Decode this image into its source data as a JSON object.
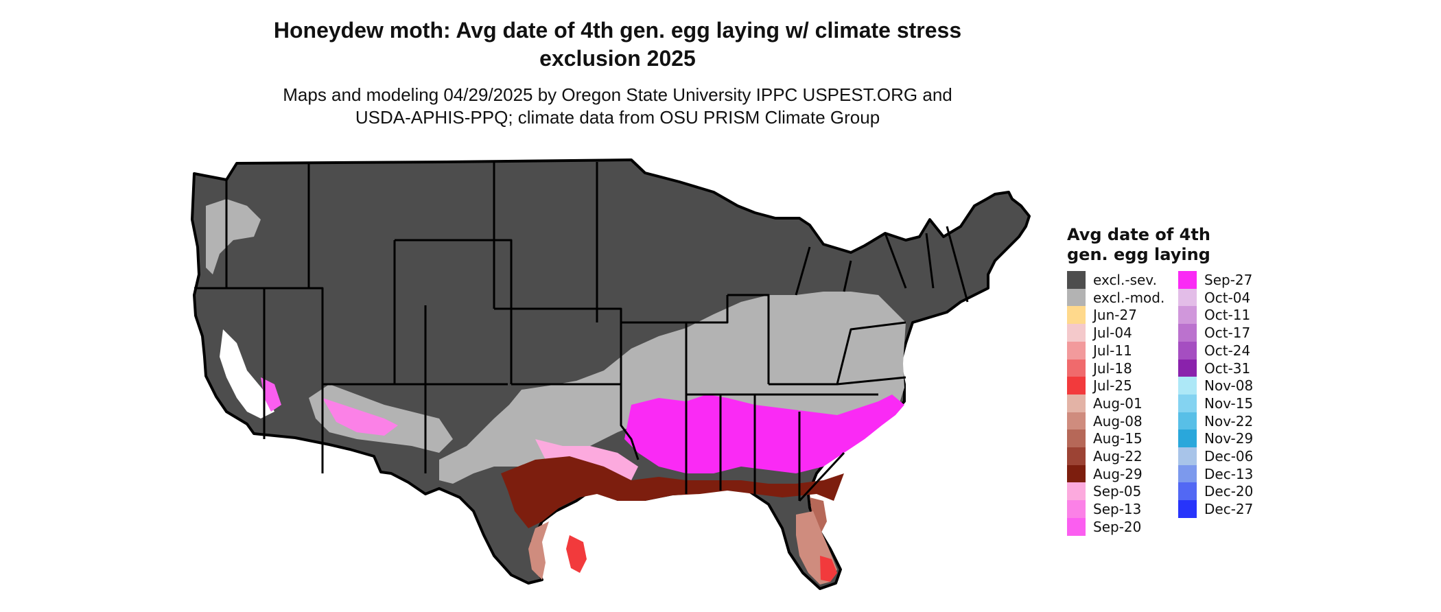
{
  "title_line1": "Honeydew moth: Avg date of 4th gen. egg laying w/ climate stress",
  "title_line2": "exclusion 2025",
  "subtitle_line1": "Maps and modeling 04/29/2025 by Oregon State University IPPC USPEST.ORG and",
  "subtitle_line2": "USDA-APHIS-PPQ; climate data from OSU PRISM Climate Group",
  "legend": {
    "title_line1": "Avg date of 4th",
    "title_line2": "gen. egg laying",
    "items": [
      {
        "label": "excl.-sev.",
        "color": "#4d4d4d"
      },
      {
        "label": "excl.-mod.",
        "color": "#b3b3b3"
      },
      {
        "label": "Jun-27",
        "color": "#ffd98c"
      },
      {
        "label": "Jul-04",
        "color": "#f4c9cb"
      },
      {
        "label": "Jul-11",
        "color": "#f29a9c"
      },
      {
        "label": "Jul-18",
        "color": "#f06a6c"
      },
      {
        "label": "Jul-25",
        "color": "#f23a3c"
      },
      {
        "label": "Aug-01",
        "color": "#e3b3a6"
      },
      {
        "label": "Aug-08",
        "color": "#cf8c7e"
      },
      {
        "label": "Aug-15",
        "color": "#b66858"
      },
      {
        "label": "Aug-22",
        "color": "#9c4334"
      },
      {
        "label": "Aug-29",
        "color": "#7d1e0e"
      },
      {
        "label": "Sep-05",
        "color": "#fcaade"
      },
      {
        "label": "Sep-13",
        "color": "#fb81e7"
      },
      {
        "label": "Sep-20",
        "color": "#fb5ef0"
      },
      {
        "label": "Sep-27",
        "color": "#fa2af5"
      },
      {
        "label": "Oct-04",
        "color": "#e3bde8"
      },
      {
        "label": "Oct-11",
        "color": "#d097db"
      },
      {
        "label": "Oct-17",
        "color": "#bb72ce"
      },
      {
        "label": "Oct-24",
        "color": "#a54ec1"
      },
      {
        "label": "Oct-31",
        "color": "#8a22ac"
      },
      {
        "label": "Nov-08",
        "color": "#ade8f7"
      },
      {
        "label": "Nov-15",
        "color": "#84d3f1"
      },
      {
        "label": "Nov-22",
        "color": "#58bfe7"
      },
      {
        "label": "Nov-29",
        "color": "#2aa7db"
      },
      {
        "label": "Dec-06",
        "color": "#a8c4e9"
      },
      {
        "label": "Dec-13",
        "color": "#7c99ed"
      },
      {
        "label": "Dec-20",
        "color": "#5268f4"
      },
      {
        "label": "Dec-27",
        "color": "#2734fb"
      }
    ]
  },
  "colors": {
    "excluded_severe": "#4d4d4d",
    "excluded_moderate": "#b3b3b3",
    "state_border": "#000000",
    "background": "#ffffff"
  }
}
